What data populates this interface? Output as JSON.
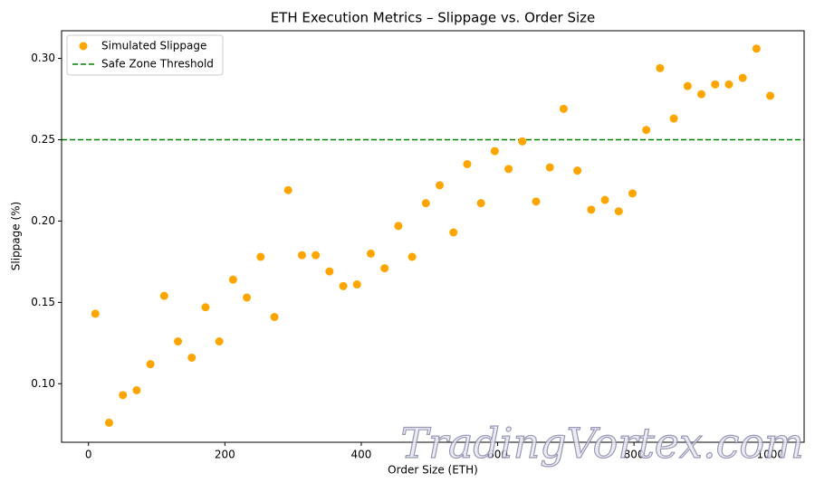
{
  "chart_data": {
    "type": "scatter",
    "title": "ETH Execution Metrics – Slippage vs. Order Size",
    "xlabel": "Order Size (ETH)",
    "ylabel": "Slippage (%)",
    "watermark": "TradingVortex.com",
    "xlim": [
      -39.5,
      1049.5
    ],
    "ylim": [
      0.064,
      0.317
    ],
    "xticks": [
      0,
      200,
      400,
      600,
      800,
      1000
    ],
    "yticks": [
      {
        "value": 0.1,
        "label": "0.10"
      },
      {
        "value": 0.15,
        "label": "0.15"
      },
      {
        "value": 0.2,
        "label": "0.20"
      },
      {
        "value": 0.25,
        "label": "0.25"
      },
      {
        "value": 0.3,
        "label": "0.30"
      }
    ],
    "grid": false,
    "legend": "upper left",
    "series": [
      {
        "name": "Simulated Slippage",
        "color": "#ffa500",
        "x": [
          10,
          30.2,
          50.4,
          70.6,
          90.8,
          111,
          131.2,
          151.4,
          171.6,
          191.8,
          212,
          232.2,
          252.4,
          272.6,
          292.8,
          313,
          333.2,
          353.4,
          373.6,
          393.8,
          414,
          434.2,
          454.4,
          474.6,
          494.8,
          515,
          535.2,
          555.4,
          575.6,
          595.8,
          616,
          636.2,
          656.4,
          676.6,
          696.8,
          717,
          737.2,
          757.4,
          777.6,
          797.8,
          818,
          838.2,
          858.4,
          878.6,
          898.8,
          919,
          939.2,
          959.4,
          979.6,
          999.8
        ],
        "values": [
          0.143,
          0.076,
          0.093,
          0.096,
          0.112,
          0.154,
          0.126,
          0.116,
          0.147,
          0.126,
          0.164,
          0.153,
          0.178,
          0.141,
          0.219,
          0.179,
          0.179,
          0.169,
          0.16,
          0.161,
          0.18,
          0.171,
          0.197,
          0.178,
          0.211,
          0.222,
          0.193,
          0.235,
          0.211,
          0.243,
          0.232,
          0.249,
          0.212,
          0.233,
          0.269,
          0.231,
          0.207,
          0.213,
          0.206,
          0.217,
          0.256,
          0.294,
          0.263,
          0.283,
          0.278,
          0.284,
          0.284,
          0.288,
          0.306,
          0.277
        ]
      }
    ],
    "threshold": {
      "name": "Safe Zone Threshold",
      "value": 0.25,
      "color": "#008000"
    }
  }
}
